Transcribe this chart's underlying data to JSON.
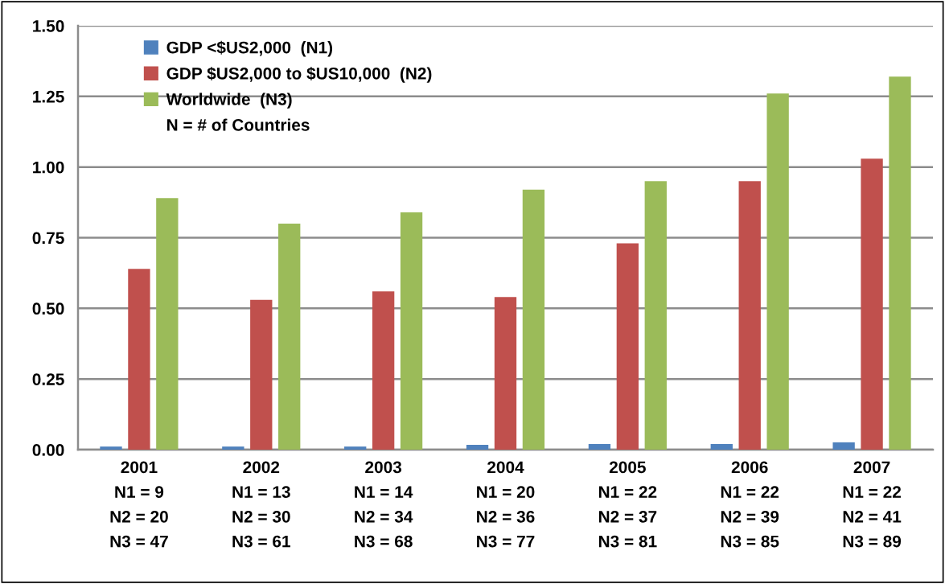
{
  "chart_data": {
    "type": "bar",
    "categories": [
      "2001\nN1 = 9\nN2 = 20\nN3 = 47",
      "2002\nN1 = 13\nN2 = 30\nN3 = 61",
      "2003\nN1 = 14\nN2 = 34\nN3 = 68",
      "2004\nN1 = 20\nN2 = 36\nN3 = 77",
      "2005\nN1 = 22\nN2 = 37\nN3 = 81",
      "2006\nN1 = 22\nN2 = 39\nN3 = 85",
      "2007\nN1 = 22\nN2 = 41\nN3 = 89"
    ],
    "series": [
      {
        "name": "GDP <$US2,000  (N1)",
        "color": "#4f81bd",
        "values": [
          0.011,
          0.011,
          0.011,
          0.017,
          0.02,
          0.02,
          0.026
        ]
      },
      {
        "name": "GDP $US2,000 to $US10,000  (N2)",
        "color": "#c0504d",
        "values": [
          0.64,
          0.53,
          0.56,
          0.54,
          0.73,
          0.95,
          1.03
        ]
      },
      {
        "name": "Worldwide  (N3)",
        "color": "#9bbb59",
        "values": [
          0.89,
          0.8,
          0.84,
          0.92,
          0.95,
          1.26,
          1.32
        ]
      }
    ],
    "annotations": [
      "N = # of Countries"
    ],
    "ylim": [
      0,
      1.5
    ],
    "yticks": [
      {
        "value": 0,
        "label": "0.00"
      },
      {
        "value": 0.25,
        "label": "0.25"
      },
      {
        "value": 0.5,
        "label": "0.50"
      },
      {
        "value": 0.75,
        "label": "0.75"
      },
      {
        "value": 1.0,
        "label": "1.00"
      },
      {
        "value": 1.25,
        "label": "1.25"
      },
      {
        "value": 1.5,
        "label": "1.50"
      }
    ],
    "grid": "y",
    "legend": "top left"
  }
}
